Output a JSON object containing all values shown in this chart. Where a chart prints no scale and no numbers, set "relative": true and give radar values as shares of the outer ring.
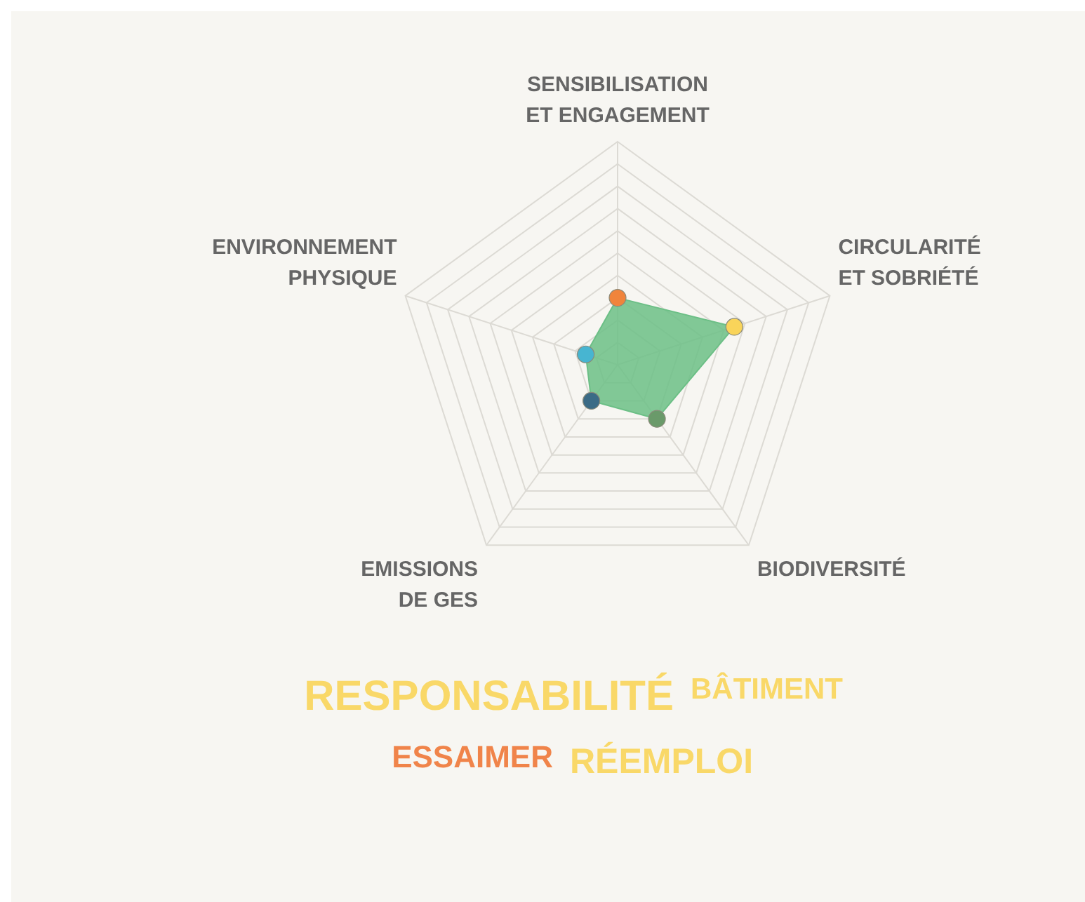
{
  "chart_data": {
    "type": "radar",
    "relative": true,
    "grid": true,
    "marker": "circle",
    "categories": [
      "SENSIBILISATION\nET ENGAGEMENT",
      "CIRCULARITÉ\nET SOBRIÉTÉ",
      "BIODIVERSITÉ",
      "EMISSIONS\nDE GES",
      "ENVIRONNEMENT\nPHYSIQUE"
    ],
    "series": [
      {
        "color": "#6cbf86",
        "colors": [
          "#f0843c",
          "#f9d45a",
          "#6a9a6a",
          "#3b6b86",
          "#47b5d1"
        ],
        "values": [
          0.3,
          0.55,
          0.3,
          0.2,
          0.15
        ]
      }
    ],
    "annotations": [
      "RESPONSABILITÉ",
      "BÂTIMENT",
      "ESSAIMER",
      "RÉEMPLOI"
    ]
  }
}
